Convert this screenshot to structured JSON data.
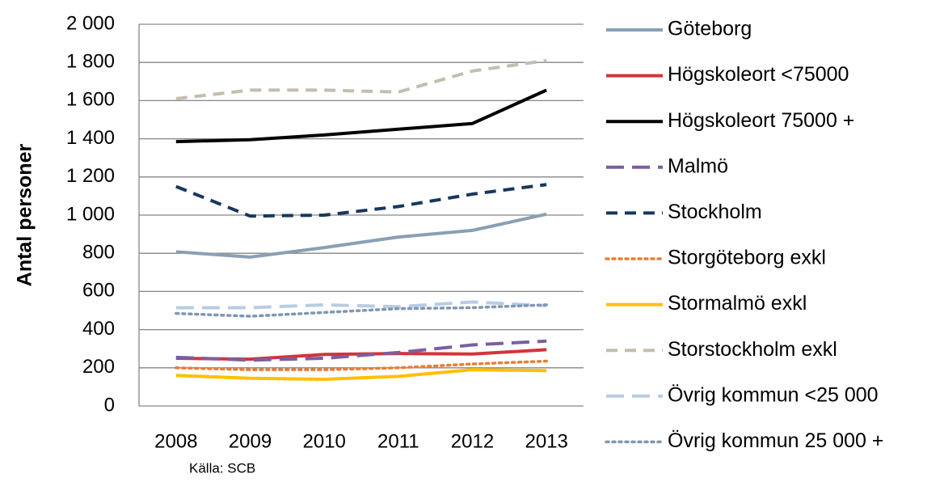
{
  "chart_data": {
    "type": "line",
    "y_label": "Antal personer",
    "source": "Källa: SCB",
    "categories": [
      "2008",
      "2009",
      "2010",
      "2011",
      "2012",
      "2013"
    ],
    "ylim": [
      0,
      2000
    ],
    "yticks": [
      0,
      200,
      400,
      600,
      800,
      {
        "value": 1000,
        "label": "1 000"
      },
      {
        "value": 1200,
        "label": "1 200"
      },
      {
        "value": 1400,
        "label": "1 400"
      },
      {
        "value": 1600,
        "label": "1 600"
      },
      {
        "value": 1800,
        "label": "1 800"
      },
      {
        "value": 2000,
        "label": "2 000"
      }
    ],
    "grid": true,
    "legend": "right",
    "series": [
      {
        "name": "Göteborg",
        "color": "#8a9fb4",
        "dash": "solid",
        "values": [
          808,
          780,
          830,
          885,
          920,
          1005
        ]
      },
      {
        "name": "Högskoleort <75000",
        "color": "#d5333b",
        "dash": "solid",
        "values": [
          250,
          245,
          270,
          275,
          272,
          295
        ]
      },
      {
        "name": "Högskoleort 75000 +",
        "color": "#000000",
        "dash": "solid",
        "values": [
          1385,
          1395,
          1420,
          1450,
          1480,
          1655
        ]
      },
      {
        "name": "Malmö",
        "color": "#7b5fa0",
        "dash": "longdash",
        "values": [
          255,
          240,
          250,
          280,
          320,
          340
        ]
      },
      {
        "name": "Stockholm",
        "color": "#17375e",
        "dash": "dash",
        "values": [
          1150,
          995,
          1000,
          1045,
          1110,
          1160
        ]
      },
      {
        "name": "Storgöteborg exkl",
        "color": "#ed7d31",
        "dash": "dot",
        "values": [
          200,
          190,
          190,
          200,
          220,
          235
        ]
      },
      {
        "name": "Stormalmö exkl",
        "color": "#ffc000",
        "dash": "solid",
        "values": [
          160,
          145,
          140,
          155,
          190,
          185
        ]
      },
      {
        "name": "Storstockholm exkl",
        "color": "#c4bdb0",
        "dash": "dash",
        "values": [
          1610,
          1655,
          1655,
          1645,
          1755,
          1810
        ]
      },
      {
        "name": "Övrig kommun <25 000",
        "color": "#b8cce4",
        "dash": "longdash",
        "values": [
          515,
          515,
          530,
          520,
          545,
          525
        ]
      },
      {
        "name": "Övrig kommun 25 000 +",
        "color": "#8097b0",
        "dash": "dot",
        "values": [
          485,
          470,
          490,
          510,
          515,
          530
        ]
      }
    ]
  }
}
